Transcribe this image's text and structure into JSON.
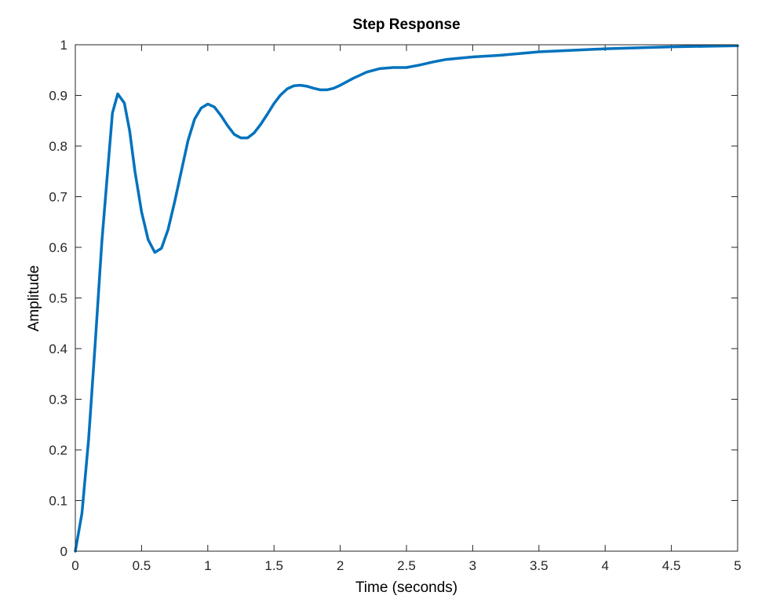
{
  "chart_data": {
    "type": "line",
    "title": "Step Response",
    "xlabel": "Time (seconds)",
    "ylabel": "Amplitude",
    "xlim": [
      0,
      5
    ],
    "ylim": [
      0,
      1
    ],
    "x_ticks": [
      0,
      0.5,
      1,
      1.5,
      2,
      2.5,
      3,
      3.5,
      4,
      4.5,
      5
    ],
    "x_tick_labels": [
      "0",
      "0.5",
      "1",
      "1.5",
      "2",
      "2.5",
      "3",
      "3.5",
      "4",
      "4.5",
      "5"
    ],
    "y_ticks": [
      0,
      0.1,
      0.2,
      0.3,
      0.4,
      0.5,
      0.6,
      0.7,
      0.8,
      0.9,
      1
    ],
    "y_tick_labels": [
      "0",
      "0.1",
      "0.2",
      "0.3",
      "0.4",
      "0.5",
      "0.6",
      "0.7",
      "0.8",
      "0.9",
      "1"
    ],
    "grid": false,
    "reference_line": 1,
    "series": [
      {
        "color": "#0072BD",
        "x": [
          0,
          0.05,
          0.1,
          0.15,
          0.2,
          0.25,
          0.28,
          0.32,
          0.37,
          0.41,
          0.45,
          0.5,
          0.55,
          0.6,
          0.65,
          0.7,
          0.75,
          0.8,
          0.85,
          0.9,
          0.95,
          1.0,
          1.05,
          1.1,
          1.15,
          1.2,
          1.25,
          1.3,
          1.35,
          1.4,
          1.45,
          1.5,
          1.55,
          1.6,
          1.65,
          1.7,
          1.75,
          1.8,
          1.85,
          1.9,
          1.95,
          2.0,
          2.1,
          2.2,
          2.3,
          2.4,
          2.5,
          2.6,
          2.7,
          2.8,
          3.0,
          3.2,
          3.5,
          4.0,
          4.5,
          5.0
        ],
        "y": [
          0,
          0.075,
          0.22,
          0.41,
          0.61,
          0.77,
          0.865,
          0.903,
          0.885,
          0.83,
          0.75,
          0.67,
          0.615,
          0.59,
          0.598,
          0.635,
          0.69,
          0.75,
          0.81,
          0.853,
          0.875,
          0.883,
          0.877,
          0.86,
          0.84,
          0.823,
          0.816,
          0.816,
          0.826,
          0.843,
          0.863,
          0.884,
          0.901,
          0.913,
          0.919,
          0.92,
          0.918,
          0.914,
          0.911,
          0.911,
          0.914,
          0.92,
          0.934,
          0.946,
          0.953,
          0.955,
          0.955,
          0.96,
          0.966,
          0.971,
          0.976,
          0.979,
          0.986,
          0.992,
          0.996,
          0.998
        ]
      }
    ]
  }
}
